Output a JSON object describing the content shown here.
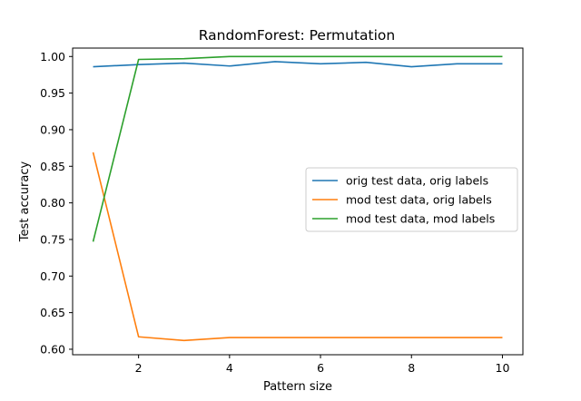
{
  "chart_data": {
    "type": "line",
    "title": "RandomForest: Permutation",
    "xlabel": "Pattern size",
    "ylabel": "Test accuracy",
    "x": [
      1,
      2,
      3,
      4,
      5,
      6,
      7,
      8,
      9,
      10
    ],
    "xlim": [
      0.55,
      10.45
    ],
    "ylim": [
      0.5925,
      1.0115
    ],
    "xticks": [
      2,
      4,
      6,
      8,
      10
    ],
    "yticks": [
      0.6,
      0.65,
      0.7,
      0.75,
      0.8,
      0.85,
      0.9,
      0.95,
      1.0
    ],
    "xtick_labels": [
      "2",
      "4",
      "6",
      "8",
      "10"
    ],
    "ytick_labels": [
      "0.60",
      "0.65",
      "0.70",
      "0.75",
      "0.80",
      "0.85",
      "0.90",
      "0.95",
      "1.00"
    ],
    "legend_placement": "center-right",
    "grid": false,
    "series": [
      {
        "name": "orig test data, orig labels",
        "color": "#1f77b4",
        "values": [
          0.986,
          0.989,
          0.991,
          0.987,
          0.993,
          0.99,
          0.992,
          0.986,
          0.99,
          0.99
        ]
      },
      {
        "name": "mod test data, orig labels",
        "color": "#ff7f0e",
        "values": [
          0.869,
          0.617,
          0.612,
          0.616,
          0.616,
          0.616,
          0.616,
          0.616,
          0.616,
          0.616
        ]
      },
      {
        "name": "mod test data, mod labels",
        "color": "#2ca02c",
        "values": [
          0.747,
          0.996,
          0.997,
          1.0,
          1.0,
          1.0,
          1.0,
          1.0,
          1.0,
          1.0
        ]
      }
    ]
  }
}
